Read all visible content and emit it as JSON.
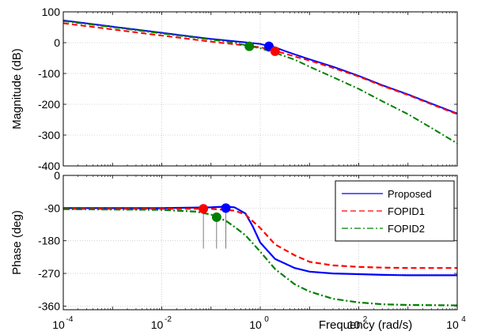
{
  "chart_data": [
    {
      "type": "line",
      "title": "",
      "xlabel": "",
      "ylabel": "Magnitude (dB)",
      "xscale": "log",
      "xlim": [
        0.0001,
        10000
      ],
      "ylim": [
        -400,
        100
      ],
      "yticks": [
        100,
        0,
        -100,
        -200,
        -300,
        -400
      ],
      "grid": true,
      "series": [
        {
          "color": "#0000ff",
          "dash": "solid",
          "x": [
            0.0001,
            0.001,
            0.01,
            0.1,
            0.5,
            1.0,
            1.5,
            2,
            3,
            5,
            10,
            30,
            100,
            300,
            1000,
            3000,
            10000
          ],
          "y": [
            72,
            52,
            32,
            12,
            1,
            -4,
            -11,
            -15,
            -26,
            -38,
            -54,
            -78,
            -108,
            -138,
            -168,
            -198,
            -230
          ],
          "marker": {
            "x": 1.5,
            "y": -12
          }
        },
        {
          "color": "#ff0000",
          "dash": "dashed",
          "x": [
            0.0001,
            0.001,
            0.01,
            0.1,
            0.5,
            1.0,
            2.0,
            3,
            5,
            10,
            30,
            100,
            300,
            1000,
            3000,
            10000
          ],
          "y": [
            63,
            43,
            23,
            3,
            -9,
            -15,
            -27,
            -34,
            -45,
            -58,
            -82,
            -110,
            -140,
            -170,
            -200,
            -232
          ],
          "marker": {
            "x": 2.0,
            "y": -28
          }
        },
        {
          "color": "#008000",
          "dash": "dashdot",
          "x": [
            0.0001,
            0.001,
            0.01,
            0.1,
            0.3,
            0.6,
            1.0,
            2,
            5,
            10,
            30,
            100,
            300,
            1000,
            3000,
            10000
          ],
          "y": [
            70,
            50,
            30,
            10,
            0,
            -11,
            -18,
            -33,
            -55,
            -78,
            -112,
            -150,
            -190,
            -232,
            -277,
            -327
          ],
          "marker": {
            "x": 0.6,
            "y": -12
          }
        }
      ]
    },
    {
      "type": "line",
      "title": "",
      "xlabel": "Frequency  (rad/s)",
      "ylabel": "Phase (deg)",
      "xscale": "log",
      "xlim": [
        0.0001,
        10000
      ],
      "ylim": [
        -370,
        0
      ],
      "yticks": [
        0,
        -90,
        -180,
        -270,
        -360
      ],
      "grid": true,
      "legend": {
        "position": "top-right",
        "entries": [
          "Proposed",
          "FOPID1",
          "FOPID2"
        ]
      },
      "series": [
        {
          "name": "Proposed",
          "color": "#0000ff",
          "dash": "solid",
          "x": [
            0.0001,
            0.01,
            0.1,
            0.2,
            0.3,
            0.5,
            0.7,
            1,
            2,
            5,
            10,
            30,
            100,
            300,
            1000,
            3000,
            10000
          ],
          "y": [
            -90,
            -90,
            -88,
            -86,
            -88,
            -105,
            -140,
            -185,
            -230,
            -255,
            -265,
            -270,
            -272,
            -274,
            -275,
            -275,
            -275
          ],
          "marker": {
            "x": 0.2,
            "y": -90
          },
          "stem": {
            "x": 0.2,
            "y": -90
          }
        },
        {
          "name": "FOPID1",
          "color": "#ff0000",
          "dash": "dashed",
          "x": [
            0.0001,
            0.01,
            0.1,
            0.3,
            0.5,
            1,
            2,
            5,
            10,
            30,
            100,
            300,
            1000,
            10000
          ],
          "y": [
            -92,
            -92,
            -92,
            -97,
            -108,
            -145,
            -190,
            -220,
            -238,
            -248,
            -252,
            -254,
            -255,
            -255
          ],
          "marker": {
            "x": 0.07,
            "y": -92
          },
          "stem": {
            "x": 0.07,
            "y": -92
          }
        },
        {
          "name": "FOPID2",
          "color": "#008000",
          "dash": "dashdot",
          "x": [
            0.0001,
            0.01,
            0.05,
            0.1,
            0.2,
            0.3,
            0.5,
            1,
            2,
            5,
            10,
            30,
            100,
            300,
            1000,
            10000
          ],
          "y": [
            -93,
            -95,
            -100,
            -108,
            -125,
            -142,
            -165,
            -210,
            -258,
            -300,
            -320,
            -340,
            -350,
            -355,
            -357,
            -358
          ],
          "marker": {
            "x": 0.13,
            "y": -115
          },
          "stem": {
            "x": 0.13,
            "y": -115
          }
        }
      ]
    }
  ]
}
